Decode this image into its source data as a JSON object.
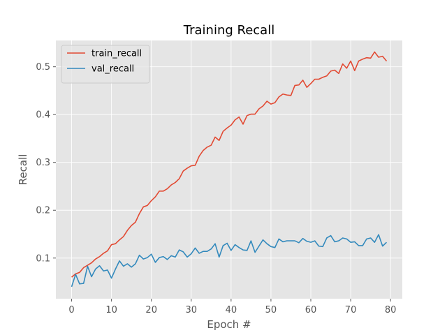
{
  "chart_data": {
    "type": "line",
    "title": "Training Recall",
    "xlabel": "Epoch #",
    "ylabel": "Recall",
    "xlim": [
      -3.95,
      82.95
    ],
    "ylim": [
      0.015,
      0.555
    ],
    "xticks": [
      0,
      10,
      20,
      30,
      40,
      50,
      60,
      70,
      80
    ],
    "yticks": [
      0.1,
      0.2,
      0.3,
      0.4,
      0.5
    ],
    "grid": true,
    "legend_position": "top-left",
    "background": "#e5e5e5",
    "x": [
      0,
      1,
      2,
      3,
      4,
      5,
      6,
      7,
      8,
      9,
      10,
      11,
      12,
      13,
      14,
      15,
      16,
      17,
      18,
      19,
      20,
      21,
      22,
      23,
      24,
      25,
      26,
      27,
      28,
      29,
      30,
      31,
      32,
      33,
      34,
      35,
      36,
      37,
      38,
      39,
      40,
      41,
      42,
      43,
      44,
      45,
      46,
      47,
      48,
      49,
      50,
      51,
      52,
      53,
      54,
      55,
      56,
      57,
      58,
      59,
      60,
      61,
      62,
      63,
      64,
      65,
      66,
      67,
      68,
      69,
      70,
      71,
      72,
      73,
      74,
      75,
      76,
      77,
      78,
      79
    ],
    "series": [
      {
        "name": "train_recall",
        "color": "#e24a33",
        "values": [
          0.06,
          0.067,
          0.07,
          0.08,
          0.085,
          0.09,
          0.098,
          0.103,
          0.11,
          0.115,
          0.128,
          0.13,
          0.138,
          0.145,
          0.158,
          0.168,
          0.175,
          0.193,
          0.207,
          0.21,
          0.22,
          0.228,
          0.24,
          0.24,
          0.245,
          0.253,
          0.258,
          0.266,
          0.282,
          0.288,
          0.293,
          0.294,
          0.313,
          0.325,
          0.332,
          0.336,
          0.353,
          0.346,
          0.365,
          0.372,
          0.378,
          0.389,
          0.395,
          0.38,
          0.398,
          0.401,
          0.401,
          0.412,
          0.418,
          0.428,
          0.422,
          0.425,
          0.437,
          0.443,
          0.441,
          0.44,
          0.461,
          0.462,
          0.472,
          0.457,
          0.465,
          0.474,
          0.474,
          0.478,
          0.481,
          0.491,
          0.493,
          0.486,
          0.506,
          0.497,
          0.512,
          0.492,
          0.512,
          0.516,
          0.519,
          0.518,
          0.531,
          0.52,
          0.522,
          0.512
        ]
      },
      {
        "name": "val_recall",
        "color": "#348abd",
        "values": [
          0.04,
          0.066,
          0.046,
          0.047,
          0.083,
          0.061,
          0.077,
          0.084,
          0.073,
          0.075,
          0.058,
          0.077,
          0.094,
          0.083,
          0.088,
          0.081,
          0.088,
          0.106,
          0.098,
          0.101,
          0.108,
          0.091,
          0.101,
          0.103,
          0.097,
          0.105,
          0.102,
          0.117,
          0.113,
          0.102,
          0.109,
          0.121,
          0.11,
          0.114,
          0.114,
          0.119,
          0.13,
          0.102,
          0.126,
          0.131,
          0.116,
          0.128,
          0.122,
          0.117,
          0.116,
          0.136,
          0.112,
          0.125,
          0.138,
          0.13,
          0.124,
          0.122,
          0.14,
          0.134,
          0.136,
          0.136,
          0.136,
          0.132,
          0.141,
          0.135,
          0.133,
          0.136,
          0.125,
          0.124,
          0.142,
          0.147,
          0.134,
          0.136,
          0.142,
          0.14,
          0.133,
          0.134,
          0.126,
          0.126,
          0.14,
          0.142,
          0.133,
          0.149,
          0.125,
          0.133
        ]
      }
    ]
  }
}
